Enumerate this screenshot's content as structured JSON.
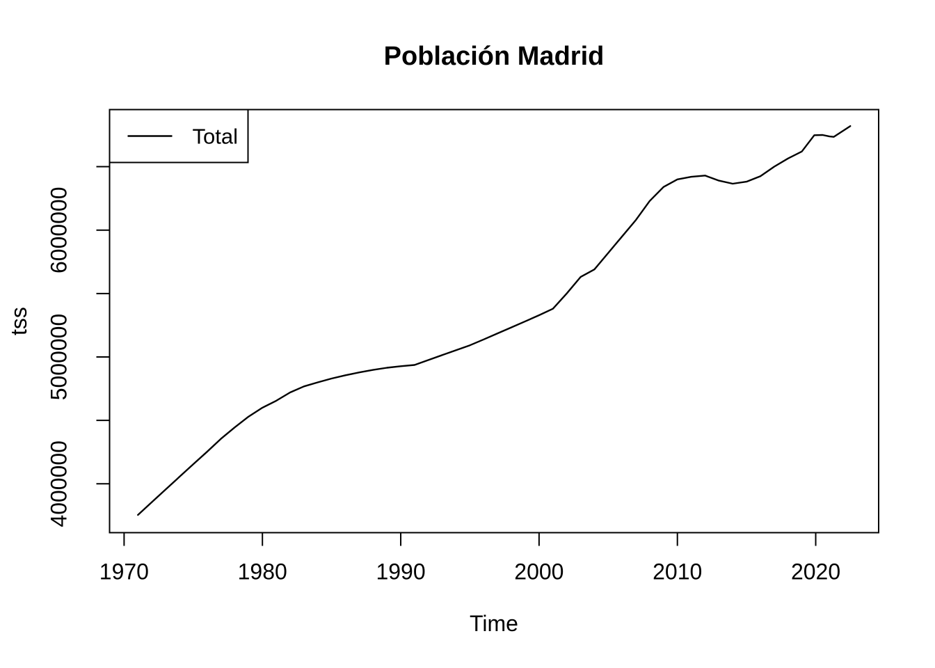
{
  "figure": {
    "background_color": "#ffffff",
    "foreground_color": "#000000"
  },
  "chart_data": {
    "type": "line",
    "title": "Población Madrid",
    "xlabel": "Time",
    "ylabel": "tss",
    "legend": {
      "position": "topleft",
      "entries": [
        {
          "label": "Total",
          "line_color": "#000000"
        }
      ]
    },
    "grid": "off",
    "xlim": [
      1968.95,
      2024.55
    ],
    "ylim": [
      3615000,
      6950000
    ],
    "x_ticks": [
      1970,
      1980,
      1990,
      2000,
      2010,
      2020
    ],
    "y_ticks": [
      4000000,
      4500000,
      5000000,
      5500000,
      6000000,
      6500000
    ],
    "y_tick_labels_shown": [
      4000000,
      5000000,
      6000000
    ],
    "series": [
      {
        "name": "Total",
        "color": "#000000",
        "points": [
          [
            1971,
            3755000
          ],
          [
            1972,
            3855000
          ],
          [
            1973,
            3955000
          ],
          [
            1974,
            4055000
          ],
          [
            1975,
            4155000
          ],
          [
            1976,
            4253000
          ],
          [
            1977,
            4355000
          ],
          [
            1978,
            4445000
          ],
          [
            1979,
            4530000
          ],
          [
            1980,
            4600000
          ],
          [
            1981,
            4655000
          ],
          [
            1982,
            4720000
          ],
          [
            1983,
            4768000
          ],
          [
            1984,
            4800000
          ],
          [
            1985,
            4830000
          ],
          [
            1986,
            4856000
          ],
          [
            1987,
            4878000
          ],
          [
            1988,
            4898000
          ],
          [
            1989,
            4915000
          ],
          [
            1990,
            4927000
          ],
          [
            1991,
            4937000
          ],
          [
            1992,
            4976000
          ],
          [
            1993,
            5015000
          ],
          [
            1994,
            5054000
          ],
          [
            1995,
            5092000
          ],
          [
            1996,
            5138000
          ],
          [
            1997,
            5186000
          ],
          [
            1998,
            5233000
          ],
          [
            1999,
            5281000
          ],
          [
            2000,
            5329000
          ],
          [
            2001,
            5380000
          ],
          [
            2002,
            5500000
          ],
          [
            2003,
            5630000
          ],
          [
            2004,
            5690000
          ],
          [
            2005,
            5820000
          ],
          [
            2006,
            5950000
          ],
          [
            2007,
            6080000
          ],
          [
            2008,
            6230000
          ],
          [
            2009,
            6340000
          ],
          [
            2010,
            6400000
          ],
          [
            2011,
            6420000
          ],
          [
            2012,
            6430000
          ],
          [
            2013,
            6390000
          ],
          [
            2014,
            6366000
          ],
          [
            2015,
            6382000
          ],
          [
            2016,
            6425000
          ],
          [
            2017,
            6500000
          ],
          [
            2018,
            6565000
          ],
          [
            2019,
            6620000
          ],
          [
            2019.9,
            6748000
          ],
          [
            2020.5,
            6750000
          ],
          [
            2021.0,
            6738000
          ],
          [
            2021.3,
            6735000
          ],
          [
            2022.5,
            6820000
          ]
        ]
      }
    ]
  }
}
